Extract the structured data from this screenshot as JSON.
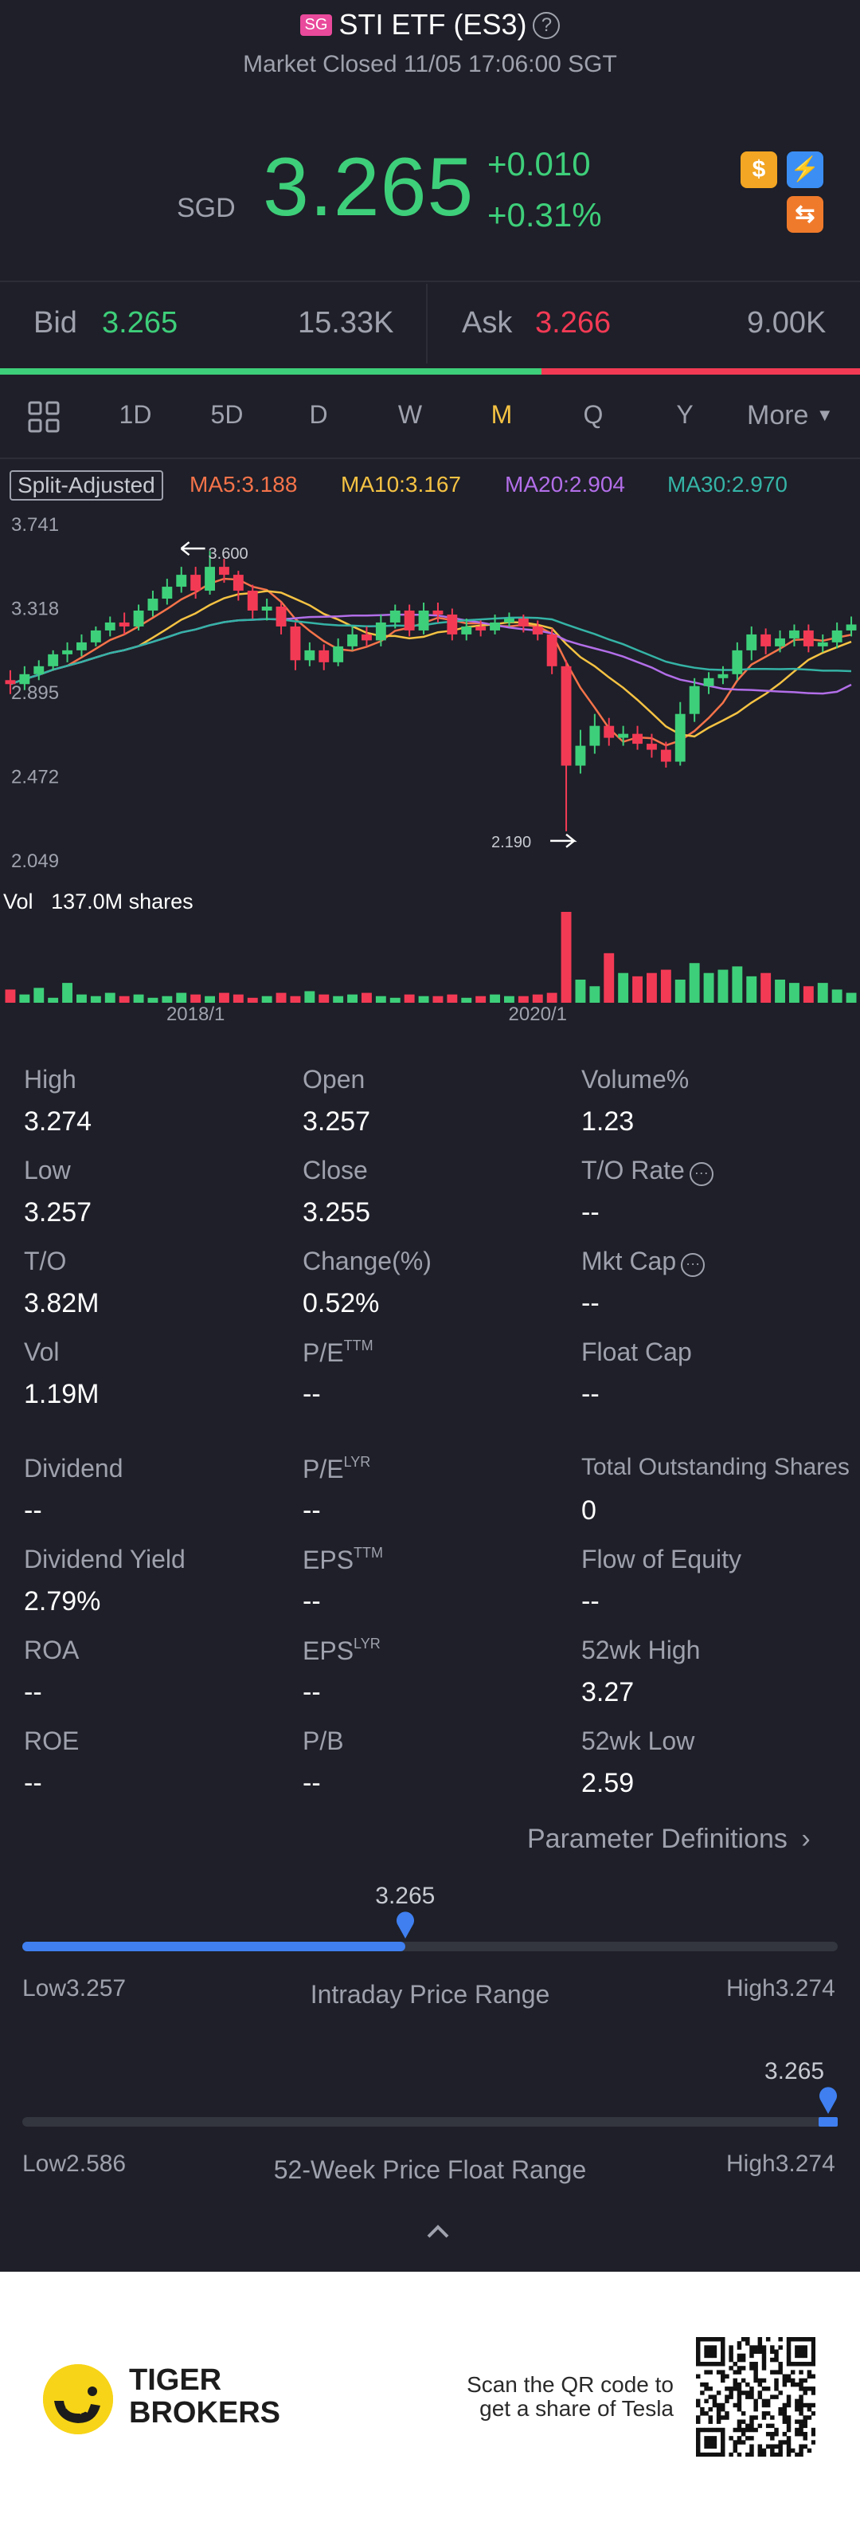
{
  "header": {
    "market_badge": "SG",
    "title": "STI ETF (ES3)",
    "status": "Market Closed 11/05 17:06:00 SGT"
  },
  "quote": {
    "currency": "SGD",
    "price": "3.265",
    "change": "+0.010",
    "change_pct": "+0.31%"
  },
  "icons": [
    "dollar-icon",
    "lightning-icon",
    "exchange-icon"
  ],
  "bid_ask": {
    "bid_label": "Bid",
    "bid_price": "3.265",
    "bid_size": "15.33K",
    "ask_label": "Ask",
    "ask_price": "3.266",
    "ask_size": "9.00K"
  },
  "tabs": {
    "d1": "1D",
    "d5": "5D",
    "d": "D",
    "w": "W",
    "m": "M",
    "q": "Q",
    "y": "Y",
    "more": "More",
    "active": "M"
  },
  "chart_legend": {
    "split": "Split-Adjusted",
    "ma5": "MA5:3.188",
    "ma10": "MA10:3.167",
    "ma20": "MA20:2.904",
    "ma30": "MA30:2.970"
  },
  "colors": {
    "up": "#3ecf7a",
    "down": "#f33a55",
    "ma5": "#f5734a",
    "ma10": "#f5c243",
    "ma20": "#b26ee8",
    "ma30": "#35b3a6",
    "accent": "#3f7ff0"
  },
  "chart_data": {
    "type": "candlestick",
    "y_ticks": [
      "3.741",
      "3.318",
      "2.895",
      "2.472",
      "2.049"
    ],
    "y_range": [
      2.049,
      3.741
    ],
    "x_ticks": [
      "2018/1",
      "2020/1"
    ],
    "high_marker": "3.600",
    "low_marker": "2.190",
    "volume_label": "Vol",
    "volume_value": "137.0M shares",
    "candles": [
      [
        2.95,
        2.93,
        3.0,
        2.88
      ],
      [
        2.93,
        2.98,
        3.02,
        2.9
      ],
      [
        2.98,
        3.02,
        3.05,
        2.95
      ],
      [
        3.02,
        3.08,
        3.1,
        3.0
      ],
      [
        3.08,
        3.1,
        3.14,
        3.04
      ],
      [
        3.1,
        3.14,
        3.18,
        3.07
      ],
      [
        3.14,
        3.2,
        3.22,
        3.12
      ],
      [
        3.2,
        3.24,
        3.27,
        3.17
      ],
      [
        3.24,
        3.22,
        3.29,
        3.18
      ],
      [
        3.22,
        3.3,
        3.33,
        3.2
      ],
      [
        3.3,
        3.36,
        3.4,
        3.27
      ],
      [
        3.36,
        3.42,
        3.46,
        3.33
      ],
      [
        3.42,
        3.48,
        3.52,
        3.39
      ],
      [
        3.48,
        3.4,
        3.52,
        3.36
      ],
      [
        3.4,
        3.52,
        3.6,
        3.38
      ],
      [
        3.52,
        3.48,
        3.56,
        3.44
      ],
      [
        3.48,
        3.4,
        3.5,
        3.35
      ],
      [
        3.4,
        3.3,
        3.43,
        3.26
      ],
      [
        3.3,
        3.32,
        3.36,
        3.25
      ],
      [
        3.32,
        3.22,
        3.34,
        3.18
      ],
      [
        3.22,
        3.05,
        3.24,
        3.0
      ],
      [
        3.05,
        3.1,
        3.14,
        3.02
      ],
      [
        3.1,
        3.04,
        3.13,
        3.0
      ],
      [
        3.04,
        3.12,
        3.16,
        3.02
      ],
      [
        3.12,
        3.18,
        3.22,
        3.1
      ],
      [
        3.18,
        3.15,
        3.22,
        3.12
      ],
      [
        3.15,
        3.24,
        3.28,
        3.12
      ],
      [
        3.24,
        3.3,
        3.33,
        3.21
      ],
      [
        3.3,
        3.2,
        3.33,
        3.17
      ],
      [
        3.2,
        3.3,
        3.34,
        3.18
      ],
      [
        3.3,
        3.28,
        3.34,
        3.24
      ],
      [
        3.28,
        3.18,
        3.31,
        3.15
      ],
      [
        3.18,
        3.22,
        3.26,
        3.15
      ],
      [
        3.22,
        3.2,
        3.25,
        3.17
      ],
      [
        3.2,
        3.24,
        3.28,
        3.18
      ],
      [
        3.24,
        3.26,
        3.29,
        3.22
      ],
      [
        3.26,
        3.22,
        3.28,
        3.19
      ],
      [
        3.22,
        3.18,
        3.25,
        3.15
      ],
      [
        3.18,
        3.02,
        3.21,
        2.98
      ],
      [
        3.02,
        2.52,
        3.05,
        2.19
      ],
      [
        2.52,
        2.62,
        2.7,
        2.48
      ],
      [
        2.62,
        2.72,
        2.78,
        2.58
      ],
      [
        2.72,
        2.66,
        2.76,
        2.62
      ],
      [
        2.66,
        2.68,
        2.72,
        2.62
      ],
      [
        2.68,
        2.63,
        2.72,
        2.6
      ],
      [
        2.63,
        2.6,
        2.68,
        2.56
      ],
      [
        2.6,
        2.54,
        2.64,
        2.51
      ],
      [
        2.54,
        2.78,
        2.84,
        2.52
      ],
      [
        2.78,
        2.92,
        2.96,
        2.74
      ],
      [
        2.92,
        2.96,
        2.99,
        2.88
      ],
      [
        2.96,
        2.98,
        3.02,
        2.93
      ],
      [
        2.98,
        3.1,
        3.14,
        2.95
      ],
      [
        3.1,
        3.18,
        3.22,
        3.05
      ],
      [
        3.18,
        3.12,
        3.21,
        3.08
      ],
      [
        3.12,
        3.16,
        3.2,
        3.09
      ],
      [
        3.16,
        3.2,
        3.23,
        3.12
      ],
      [
        3.2,
        3.12,
        3.23,
        3.09
      ],
      [
        3.12,
        3.14,
        3.18,
        3.09
      ],
      [
        3.14,
        3.2,
        3.24,
        3.11
      ],
      [
        3.2,
        3.23,
        3.27,
        3.17
      ]
    ],
    "volumes": [
      8,
      5,
      9,
      3,
      12,
      5,
      4,
      6,
      4,
      5,
      3,
      4,
      6,
      5,
      4,
      6,
      5,
      3,
      4,
      6,
      4,
      7,
      5,
      4,
      5,
      6,
      4,
      3,
      5,
      4,
      4,
      5,
      3,
      4,
      5,
      4,
      4,
      5,
      6,
      55,
      14,
      10,
      30,
      18,
      16,
      18,
      20,
      14,
      24,
      18,
      20,
      22,
      16,
      18,
      14,
      12,
      10,
      12,
      8,
      6
    ]
  },
  "stats": {
    "high_label": "High",
    "high": "3.274",
    "open_label": "Open",
    "open": "3.257",
    "volpct_label": "Volume%",
    "volpct": "1.23",
    "low_label": "Low",
    "low": "3.257",
    "close_label": "Close",
    "close": "3.255",
    "to_rate_label": "T/O Rate",
    "to_rate": "--",
    "to_label": "T/O",
    "to": "3.82M",
    "change_label": "Change(%)",
    "change": "0.52%",
    "mktcap_label": "Mkt Cap",
    "mktcap": "--",
    "vol_label": "Vol",
    "vol": "1.19M",
    "pe_ttm_label": "P/E",
    "pe_ttm_sup": "TTM",
    "pe_ttm": "--",
    "floatcap_label": "Float Cap",
    "floatcap": "--",
    "dividend_label": "Dividend",
    "dividend": "--",
    "pe_lyr_label": "P/E",
    "pe_lyr_sup": "LYR",
    "pe_lyr": "--",
    "tos_label": "Total Outstanding Shares",
    "tos": "0",
    "divyield_label": "Dividend Yield",
    "divyield": "2.79%",
    "eps_ttm_label": "EPS",
    "eps_ttm_sup": "TTM",
    "eps_ttm": "--",
    "flow_label": "Flow of Equity",
    "flow": "--",
    "roa_label": "ROA",
    "roa": "--",
    "eps_lyr_label": "EPS",
    "eps_lyr_sup": "LYR",
    "eps_lyr": "--",
    "wk52h_label": "52wk High",
    "wk52h": "3.27",
    "roe_label": "ROE",
    "roe": "--",
    "pb_label": "P/B",
    "pb": "--",
    "wk52l_label": "52wk Low",
    "wk52l": "2.59",
    "param_def": "Parameter Definitions"
  },
  "intraday_range": {
    "current": "3.265",
    "low_label": "Low",
    "low": "3.257",
    "high_label": "High",
    "high": "3.274",
    "title": "Intraday Price Range",
    "position": 0.47
  },
  "week52_range": {
    "current": "3.265",
    "low_label": "Low",
    "low": "2.586",
    "high_label": "High",
    "high": "3.274",
    "title": "52-Week Price Float Range",
    "position": 0.99
  },
  "footer": {
    "brand_line1": "TIGER",
    "brand_line2": "BROKERS",
    "scan_line1": "Scan the QR code to",
    "scan_line2": "get a share of Tesla"
  }
}
